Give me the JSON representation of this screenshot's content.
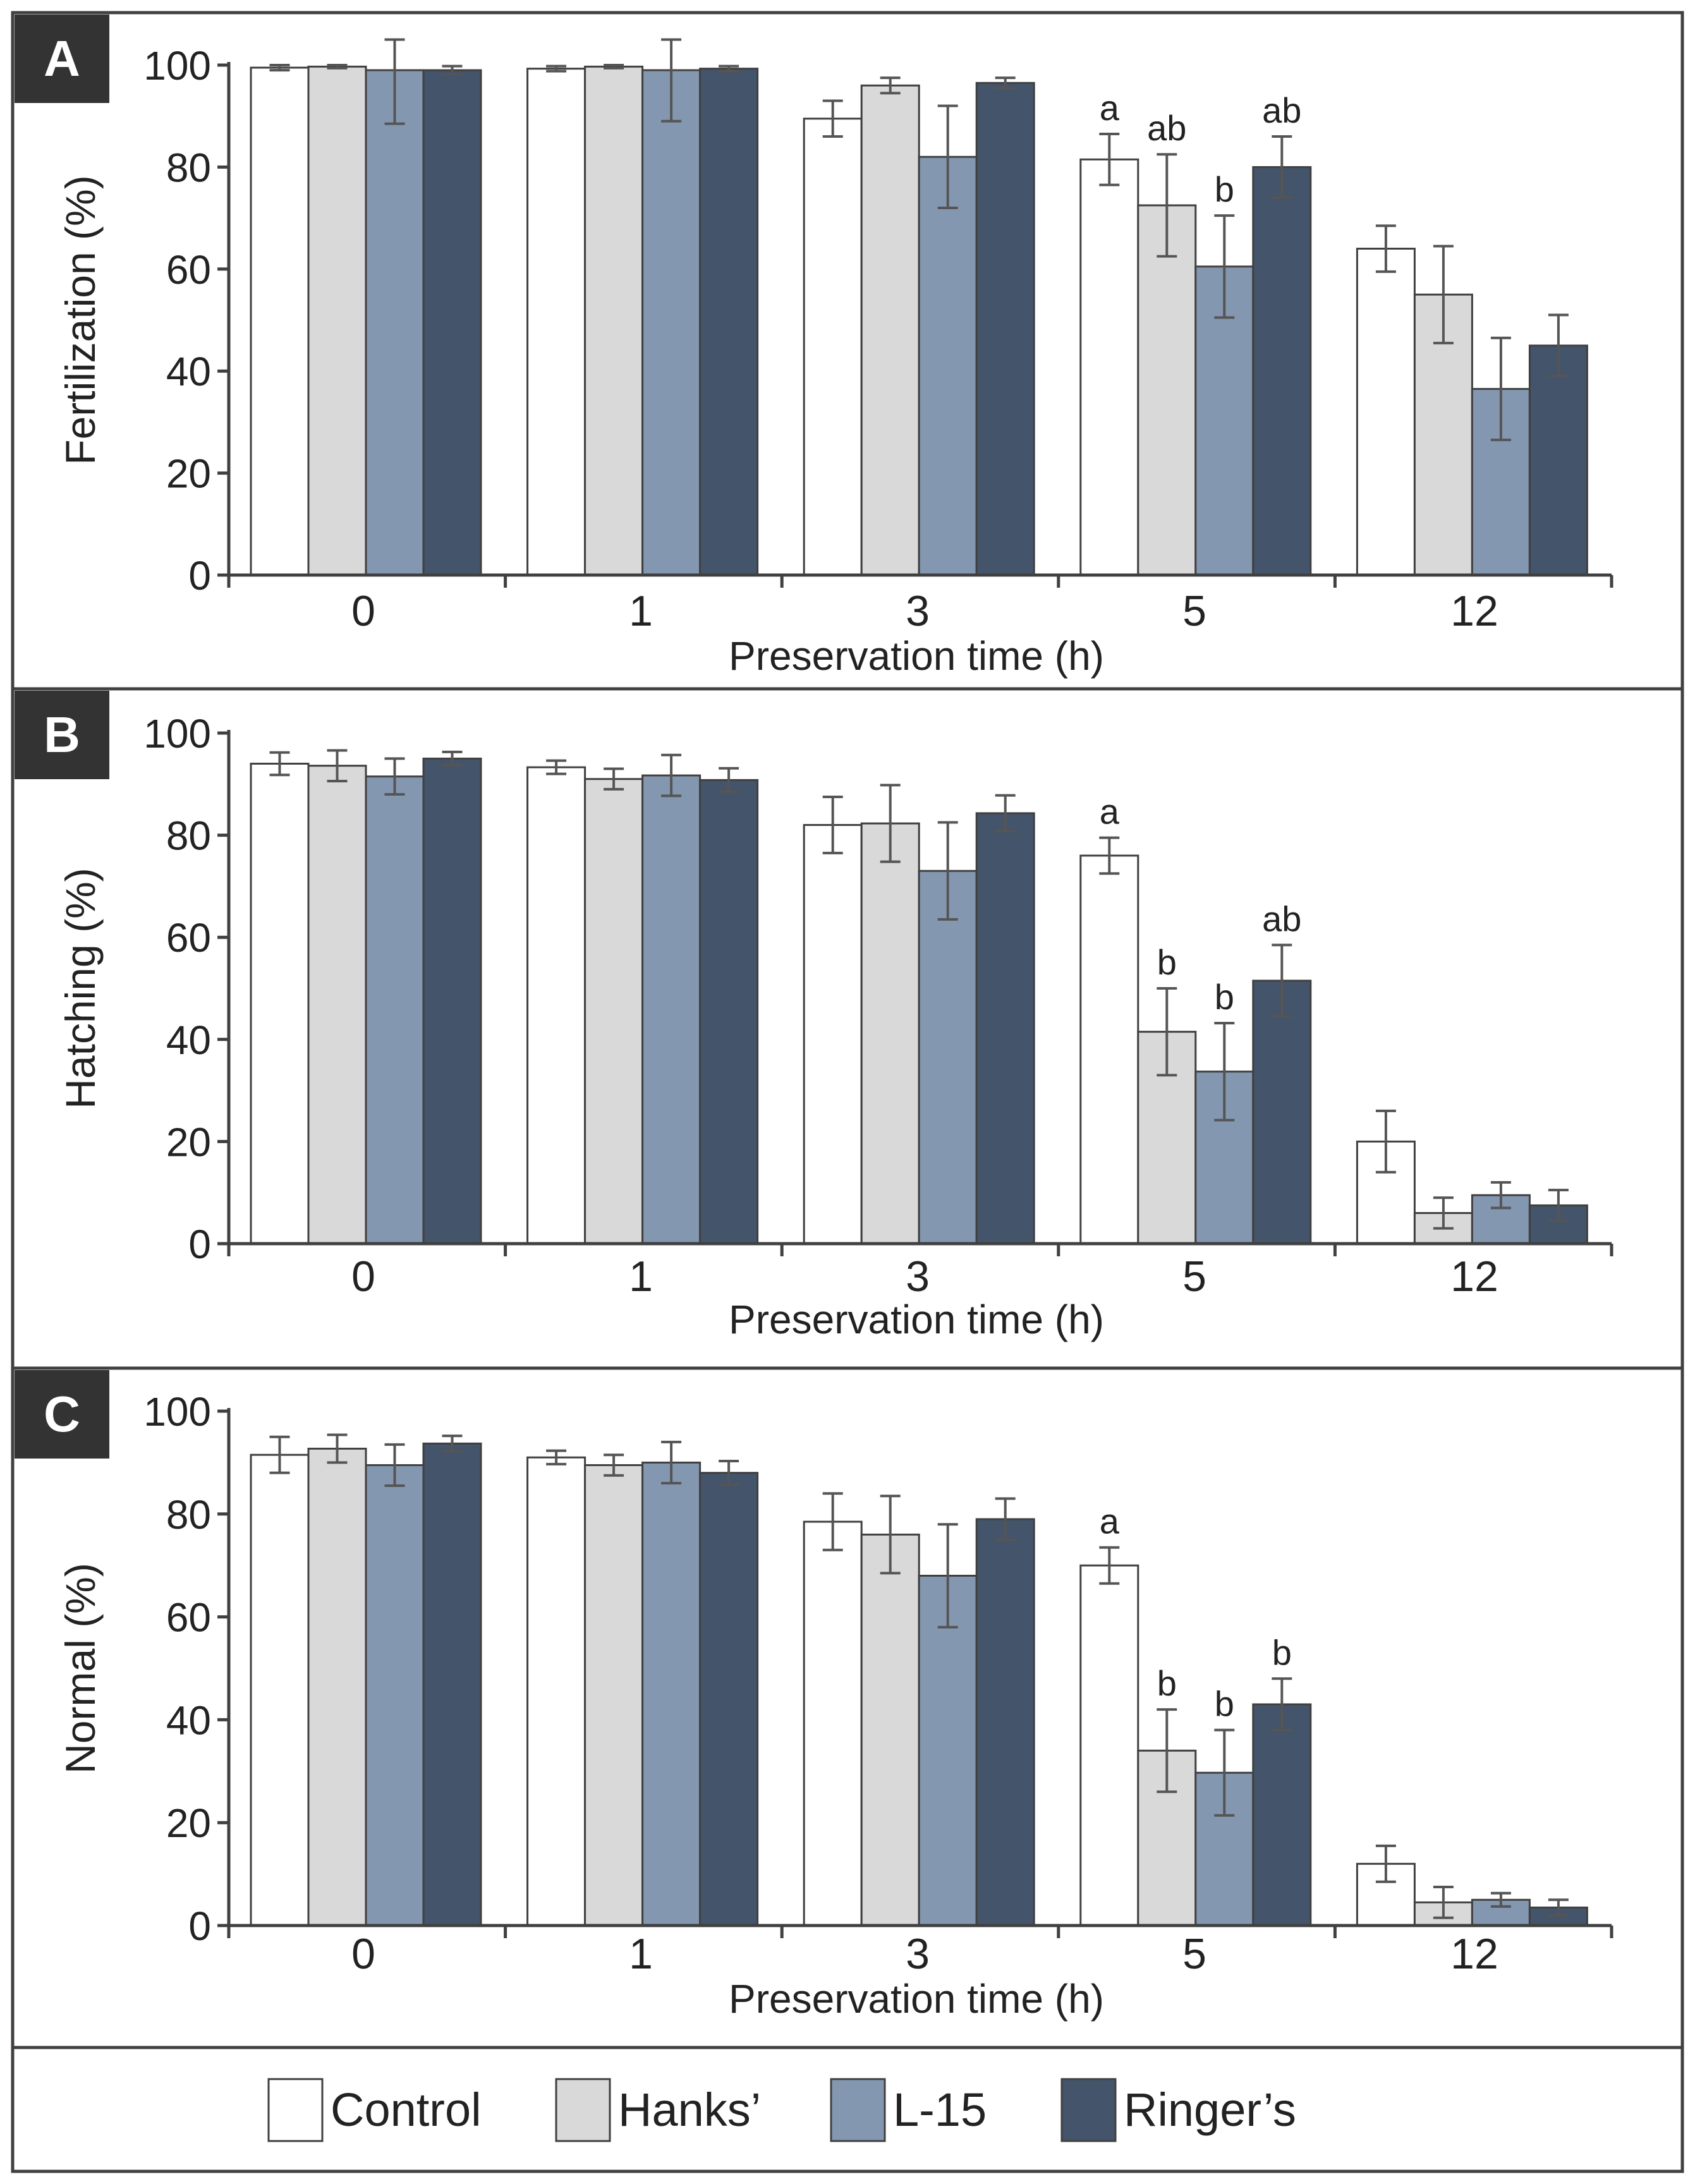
{
  "colors": {
    "control": "#ffffff",
    "hanks": "#d9d9d9",
    "l15": "#8497b0",
    "ringers": "#44546a",
    "axis": "#404040",
    "frame": "#404040",
    "label_bg": "#333333"
  },
  "legend": {
    "items": [
      {
        "key": "control",
        "label": "Control"
      },
      {
        "key": "hanks",
        "label": "Hanks’"
      },
      {
        "key": "l15",
        "label": "L-15"
      },
      {
        "key": "ringers",
        "label": "Ringer’s"
      }
    ]
  },
  "chart_data": [
    {
      "panel": "A",
      "type": "bar",
      "xlabel": "Preservation time (h)",
      "ylabel": "Fertilization (%)",
      "ylim": [
        0,
        100
      ],
      "yticks": [
        "0",
        "20",
        "40",
        "60",
        "80",
        "100"
      ],
      "categories": [
        "0",
        "1",
        "3",
        "5",
        "12"
      ],
      "series": [
        {
          "name": "Control",
          "values": [
            99.5,
            99.3,
            89.5,
            81.5,
            64
          ],
          "errors": [
            0.5,
            0.5,
            3.5,
            5,
            4.5
          ],
          "letters": [
            "",
            "",
            "",
            "a",
            ""
          ]
        },
        {
          "name": "Hanks’",
          "values": [
            99.7,
            99.7,
            96,
            72.5,
            55
          ],
          "errors": [
            0.3,
            0.3,
            1.5,
            10,
            9.5
          ],
          "letters": [
            "",
            "",
            "",
            "ab",
            ""
          ]
        },
        {
          "name": "L-15",
          "values": [
            99,
            99,
            82,
            60.5,
            36.5
          ],
          "errors": [
            10.5,
            10,
            10,
            10,
            10
          ],
          "letters": [
            "",
            "",
            "",
            "b",
            ""
          ]
        },
        {
          "name": "Ringer’s",
          "values": [
            99,
            99.3,
            96.5,
            80,
            45
          ],
          "errors": [
            0.8,
            0.5,
            1,
            6,
            6
          ],
          "letters": [
            "",
            "",
            "",
            "ab",
            ""
          ]
        }
      ]
    },
    {
      "panel": "B",
      "type": "bar",
      "xlabel": "Preservation time (h)",
      "ylabel": "Hatching (%)",
      "ylim": [
        0,
        100
      ],
      "yticks": [
        "0",
        "20",
        "40",
        "60",
        "80",
        "100"
      ],
      "categories": [
        "0",
        "1",
        "3",
        "5",
        "12"
      ],
      "series": [
        {
          "name": "Control",
          "values": [
            94,
            93.3,
            82,
            76,
            20
          ],
          "errors": [
            2.2,
            1.3,
            5.5,
            3.5,
            6
          ],
          "letters": [
            "",
            "",
            "",
            "a",
            ""
          ]
        },
        {
          "name": "Hanks’",
          "values": [
            93.6,
            91,
            82.3,
            41.5,
            6
          ],
          "errors": [
            3,
            2,
            7.5,
            8.5,
            3
          ],
          "letters": [
            "",
            "",
            "",
            "b",
            ""
          ]
        },
        {
          "name": "L-15",
          "values": [
            91.5,
            91.7,
            73,
            33.7,
            9.5
          ],
          "errors": [
            3.5,
            4,
            9.5,
            9.5,
            2.5
          ],
          "letters": [
            "",
            "",
            "",
            "b",
            ""
          ]
        },
        {
          "name": "Ringer’s",
          "values": [
            95,
            90.8,
            84.3,
            51.5,
            7.5
          ],
          "errors": [
            1.3,
            2.3,
            3.5,
            7,
            3
          ],
          "letters": [
            "",
            "",
            "",
            "ab",
            ""
          ]
        }
      ]
    },
    {
      "panel": "C",
      "type": "bar",
      "xlabel": "Preservation time (h)",
      "ylabel": "Normal (%)",
      "ylim": [
        0,
        100
      ],
      "yticks": [
        "0",
        "20",
        "40",
        "60",
        "80",
        "100"
      ],
      "categories": [
        "0",
        "1",
        "3",
        "5",
        "12"
      ],
      "series": [
        {
          "name": "Control",
          "values": [
            91.5,
            91,
            78.5,
            70,
            12
          ],
          "errors": [
            3.5,
            1.3,
            5.5,
            3.5,
            3.5
          ],
          "letters": [
            "",
            "",
            "",
            "a",
            ""
          ]
        },
        {
          "name": "Hanks’",
          "values": [
            92.7,
            89.5,
            76,
            34,
            4.5
          ],
          "errors": [
            2.7,
            2,
            7.5,
            8,
            3
          ],
          "letters": [
            "",
            "",
            "",
            "b",
            ""
          ]
        },
        {
          "name": "L-15",
          "values": [
            89.5,
            90,
            68,
            29.7,
            5
          ],
          "errors": [
            4,
            4,
            10,
            8.3,
            1.3
          ],
          "letters": [
            "",
            "",
            "",
            "b",
            ""
          ]
        },
        {
          "name": "Ringer’s",
          "values": [
            93.7,
            88,
            79,
            43,
            3.5
          ],
          "errors": [
            1.5,
            2.3,
            4,
            5,
            1.5
          ],
          "letters": [
            "",
            "",
            "",
            "b",
            ""
          ]
        }
      ]
    }
  ]
}
